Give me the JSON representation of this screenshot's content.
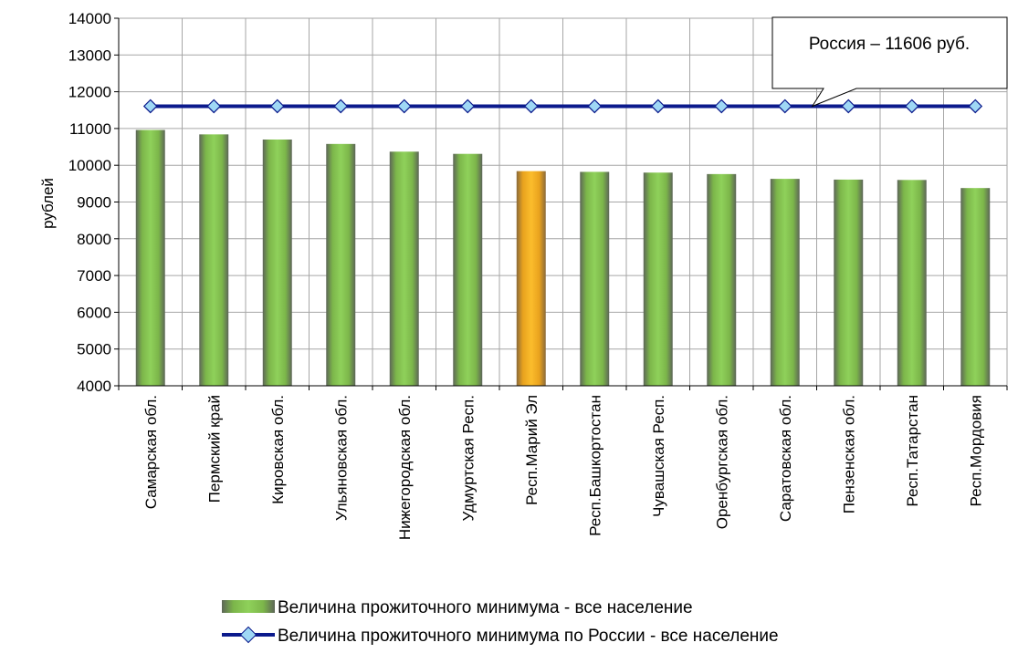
{
  "chart_data": {
    "type": "bar",
    "ylabel": "рублей",
    "ylim": [
      4000,
      14000
    ],
    "ytick_step": 1000,
    "grid": true,
    "legend_position": "bottom",
    "categories": [
      "Самарская обл.",
      "Пермский край",
      "Кировская обл.",
      "Ульяновская обл.",
      "Нижегородская обл.",
      "Удмуртская Респ.",
      "Респ.Марий Эл",
      "Респ.Башкортостан",
      "Чувашская Респ.",
      "Оренбургская обл.",
      "Саратовская обл.",
      "Пензенская обл.",
      "Респ.Татарстан",
      "Респ.Мордовия"
    ],
    "series": [
      {
        "name": "Величина прожиточного минимума - все население",
        "kind": "bar",
        "color": "#7ec244",
        "highlight_index": 6,
        "highlight_color": "#f5a623",
        "values": [
          10960,
          10840,
          10700,
          10580,
          10370,
          10310,
          9840,
          9820,
          9800,
          9760,
          9630,
          9610,
          9600,
          9380
        ]
      },
      {
        "name": "Величина прожиточного минимума по России - все население",
        "kind": "line",
        "color": "#0b1a8c",
        "marker_color": "#9fd8f5",
        "values": [
          11606,
          11606,
          11606,
          11606,
          11606,
          11606,
          11606,
          11606,
          11606,
          11606,
          11606,
          11606,
          11606,
          11606
        ]
      }
    ],
    "annotation": {
      "text": "Россия – 11606 руб.",
      "points_to_category_index": 10
    }
  }
}
